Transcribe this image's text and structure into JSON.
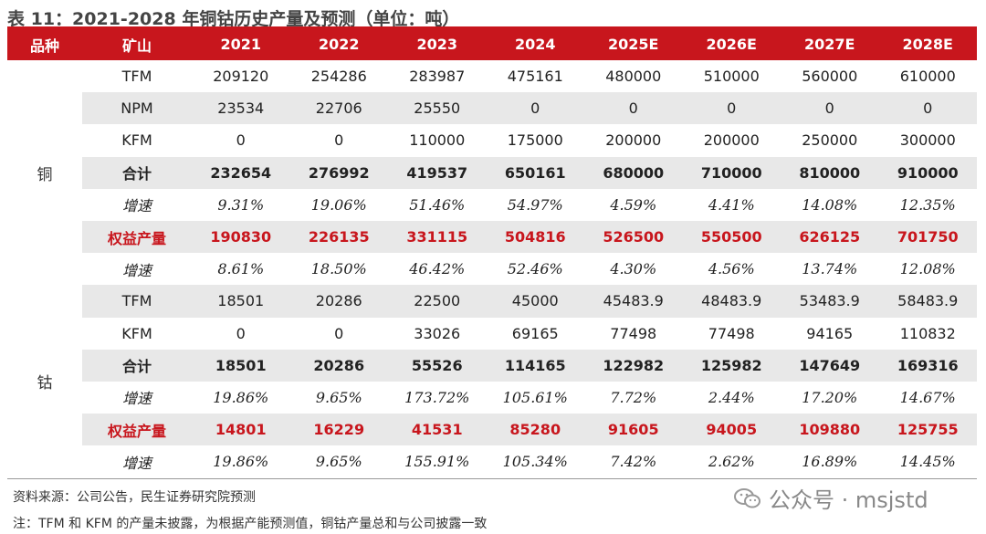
{
  "title": "表 11：2021-2028 年铜钴历史产量及预测（单位：吨）",
  "headers": [
    "品种",
    "矿山",
    "2021",
    "2022",
    "2023",
    "2024",
    "2025E",
    "2026E",
    "2027E",
    "2028E"
  ],
  "copper": {
    "label": "铜",
    "rows": [
      {
        "mine": "TFM",
        "values": [
          "209120",
          "254286",
          "283987",
          "475161",
          "480000",
          "510000",
          "560000",
          "610000"
        ]
      },
      {
        "mine": "NPM",
        "values": [
          "23534",
          "22706",
          "25550",
          "0",
          "0",
          "0",
          "0",
          "0"
        ]
      },
      {
        "mine": "KFM",
        "values": [
          "0",
          "0",
          "110000",
          "175000",
          "200000",
          "200000",
          "250000",
          "300000"
        ]
      },
      {
        "mine": "合计",
        "values": [
          "232654",
          "276992",
          "419537",
          "650161",
          "680000",
          "710000",
          "810000",
          "910000"
        ]
      },
      {
        "mine": "增速",
        "values": [
          "9.31%",
          "19.06%",
          "51.46%",
          "54.97%",
          "4.59%",
          "4.41%",
          "14.08%",
          "12.35%"
        ]
      },
      {
        "mine": "权益产量",
        "values": [
          "190830",
          "226135",
          "331115",
          "504816",
          "526500",
          "550500",
          "626125",
          "701750"
        ]
      },
      {
        "mine": "增速",
        "values": [
          "8.61%",
          "18.50%",
          "46.42%",
          "52.46%",
          "4.30%",
          "4.56%",
          "13.74%",
          "12.08%"
        ]
      }
    ]
  },
  "cobalt": {
    "label": "钴",
    "rows": [
      {
        "mine": "TFM",
        "values": [
          "18501",
          "20286",
          "22500",
          "45000",
          "45483.9",
          "48483.9",
          "53483.9",
          "58483.9"
        ]
      },
      {
        "mine": "KFM",
        "values": [
          "0",
          "0",
          "33026",
          "69165",
          "77498",
          "77498",
          "94165",
          "110832"
        ]
      },
      {
        "mine": "合计",
        "values": [
          "18501",
          "20286",
          "55526",
          "114165",
          "122982",
          "125982",
          "147649",
          "169316"
        ]
      },
      {
        "mine": "增速",
        "values": [
          "19.86%",
          "9.65%",
          "173.72%",
          "105.61%",
          "7.72%",
          "2.44%",
          "17.20%",
          "14.67%"
        ]
      },
      {
        "mine": "权益产量",
        "values": [
          "14801",
          "16229",
          "41531",
          "85280",
          "91605",
          "94005",
          "109880",
          "125755"
        ]
      },
      {
        "mine": "增速",
        "values": [
          "19.86%",
          "9.65%",
          "155.91%",
          "105.34%",
          "7.42%",
          "2.62%",
          "16.89%",
          "14.45%"
        ]
      }
    ]
  },
  "source": "资料来源：公司公告，民生证券研究院预测",
  "note": "注：TFM 和 KFM 的产量未披露，为根据产能预测值，铜钴产量总和与公司披露一致",
  "watermark": "公众号 · msjstd",
  "watermark_icon": "wechat-icon",
  "colors": {
    "accent": "#c8161d",
    "shade": "#e8e8e8"
  }
}
